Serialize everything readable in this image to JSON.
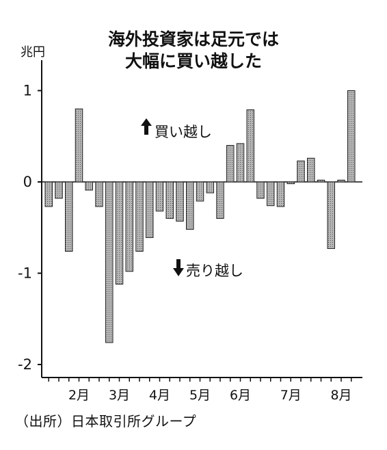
{
  "chart_data": {
    "type": "bar",
    "title_lines": [
      "海外投資家は足元では",
      "大幅に買い越した"
    ],
    "ylabel": "兆円",
    "ylim": [
      -2.15,
      1.35
    ],
    "yticks": [
      1,
      0,
      -1,
      -2
    ],
    "ytick_labels": [
      "1",
      "0",
      "-1",
      "-2"
    ],
    "grid": false,
    "month_labels": [
      "2月",
      "3月",
      "4月",
      "5月",
      "6月",
      "7月",
      "8月"
    ],
    "month_label_week_index": [
      3,
      7,
      11,
      15,
      19,
      24,
      29
    ],
    "values": [
      -0.27,
      -0.18,
      -0.76,
      0.8,
      -0.09,
      -0.27,
      -1.76,
      -1.12,
      -0.98,
      -0.76,
      -0.61,
      -0.32,
      -0.4,
      -0.43,
      -0.52,
      -0.21,
      -0.12,
      -0.4,
      0.4,
      0.42,
      0.79,
      -0.18,
      -0.26,
      -0.27,
      -0.02,
      0.23,
      0.26,
      0.02,
      -0.73,
      0.02,
      1.0
    ],
    "annotations": {
      "buy": "買い越し",
      "sell": "売り越し"
    },
    "bar_color": "#a9a9a9",
    "bar_edge_color": "#222222"
  },
  "source": "（出所）日本取引所グループ"
}
